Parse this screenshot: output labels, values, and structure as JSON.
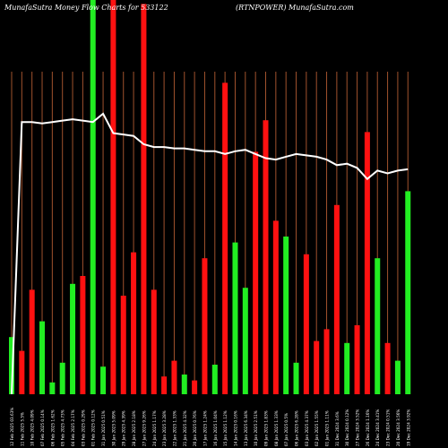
{
  "header": {
    "title_left": "MunafaSutra  Money Flow  Charts for 533122",
    "title_right": "(RTNPOWER) MunafaSutra.com"
  },
  "colors": {
    "background": "#000000",
    "up_bar": "#22ee22",
    "down_bar": "#ff1111",
    "grid": "#a0522d",
    "line": "#ffffff",
    "label": "#ffffff"
  },
  "chart_data": {
    "type": "bar",
    "title": "MunafaSutra  Money Flow  Charts for 533122",
    "subtitle": "(RTNPOWER) MunafaSutra.com",
    "xlabel": "",
    "ylabel": "",
    "grid": true,
    "ylim": [
      0,
      100
    ],
    "categories": [
      "12 Feb 2025 03.63%",
      "11 Feb 2025 5.5%",
      "10 Feb 2025 4.09%",
      "07 Feb 2025 0.14%",
      "06 Feb 2025 1.62%",
      "05 Feb 2025 4.73%",
      "04 Feb 2025 2.17%",
      "03 Feb 2025 0.29%",
      "01 Feb 2025 0.12%",
      "31 Jan 2025 0.51%",
      "30 Jan 2025 5.09%",
      "29 Jan 2025 4.39%",
      "28 Jan 2025 2.18%",
      "27 Jan 2025 9.26%",
      "24 Jan 2025 1.17%",
      "23 Jan 2025 3.28%",
      "22 Jan 2025 1.33%",
      "21 Jan 2025 4.32%",
      "20 Jan 2025 0.76%",
      "17 Jan 2025 1.24%",
      "16 Jan 2025 1.04%",
      "15 Jan 2025 1.12%",
      "14 Jan 2025 0.16%",
      "13 Jan 2025 6.34%",
      "10 Jan 2025 2.51%",
      "09 Jan 2025 1.83%",
      "08 Jan 2025 1.33%",
      "07 Jan 2025 0.5%",
      "06 Jan 2025 6.28%",
      "03 Jan 2025 4.37%",
      "02 Jan 2025 1.55%",
      "01 Jan 2025 1.11%",
      "31 Dec 2024 3.6%",
      "30 Dec 2024 0.12%",
      "27 Dec 2024 3.52%",
      "26 Dec 2024 1.16%",
      "24 Dec 2024 3.41%",
      "23 Dec 2024 0.51%",
      "20 Dec 2024 3.56%",
      "19 Dec 2024 3.92%"
    ],
    "series": [
      {
        "values": [
          {
            "v": 14.5,
            "c": "up"
          },
          {
            "v": 11,
            "c": "down"
          },
          {
            "v": 26.5,
            "c": "down"
          },
          {
            "v": 18.5,
            "c": "up"
          },
          {
            "v": 3,
            "c": "up"
          },
          {
            "v": 8,
            "c": "up"
          },
          {
            "v": 28,
            "c": "up"
          },
          {
            "v": 30,
            "c": "down"
          },
          {
            "v": 100,
            "c": "up"
          },
          {
            "v": 7,
            "c": "up"
          },
          {
            "v": 100,
            "c": "down"
          },
          {
            "v": 25,
            "c": "down"
          },
          {
            "v": 36,
            "c": "down"
          },
          {
            "v": 99,
            "c": "down"
          },
          {
            "v": 26.5,
            "c": "down"
          },
          {
            "v": 4.5,
            "c": "down"
          },
          {
            "v": 8.5,
            "c": "down"
          },
          {
            "v": 5,
            "c": "up"
          },
          {
            "v": 3.5,
            "c": "down"
          },
          {
            "v": 34.5,
            "c": "down"
          },
          {
            "v": 7.5,
            "c": "up"
          },
          {
            "v": 79,
            "c": "down"
          },
          {
            "v": 38.5,
            "c": "up"
          },
          {
            "v": 27,
            "c": "up"
          },
          {
            "v": 61.5,
            "c": "down"
          },
          {
            "v": 69.5,
            "c": "down"
          },
          {
            "v": 44,
            "c": "down"
          },
          {
            "v": 40,
            "c": "up"
          },
          {
            "v": 8,
            "c": "up"
          },
          {
            "v": 35.5,
            "c": "down"
          },
          {
            "v": 13.5,
            "c": "down"
          },
          {
            "v": 16.5,
            "c": "down"
          },
          {
            "v": 48,
            "c": "down"
          },
          {
            "v": 13,
            "c": "up"
          },
          {
            "v": 17.5,
            "c": "down"
          },
          {
            "v": 66.5,
            "c": "down"
          },
          {
            "v": 34.5,
            "c": "up"
          },
          {
            "v": 13,
            "c": "down"
          },
          {
            "v": 8.5,
            "c": "up"
          },
          {
            "v": 51.5,
            "c": "up"
          }
        ]
      }
    ],
    "line": [
      0,
      98,
      98,
      97.5,
      98,
      98.5,
      99,
      98.5,
      98,
      101,
      94,
      93.5,
      93,
      90,
      89,
      89,
      88.5,
      88.5,
      88,
      87.5,
      87.5,
      86.5,
      87.5,
      88,
      86.5,
      85,
      84.5,
      85.5,
      86.5,
      86,
      85.5,
      84.5,
      82.5,
      83,
      81.5,
      77.5,
      80.5,
      79.5,
      80.5,
      81
    ]
  }
}
